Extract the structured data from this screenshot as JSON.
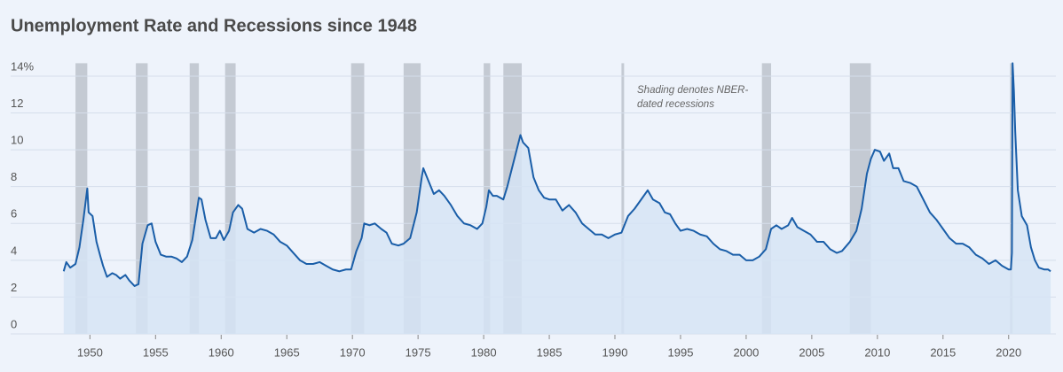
{
  "chart_data": {
    "type": "area_line",
    "title": "Unemployment Rate and Recessions since 1948",
    "annotation": [
      "Shading denotes NBER-",
      "dated recessions"
    ],
    "color": "#1a5ea8",
    "fill_color": "#d6e4f5",
    "recession_color": "#b9bfc9",
    "grid": true,
    "xlim": [
      1944.5,
      2023.6
    ],
    "xticks": [
      1950,
      1955,
      1960,
      1965,
      1970,
      1975,
      1980,
      1985,
      1990,
      1995,
      2000,
      2005,
      2010,
      2015,
      2020
    ],
    "ylim": [
      0,
      14.7
    ],
    "yticks": [
      0,
      2,
      4,
      6,
      8,
      10,
      12,
      {
        "value": 14,
        "label": "14%"
      }
    ],
    "recessions": [
      {
        "start": 1948.9,
        "end": 1949.8
      },
      {
        "start": 1953.5,
        "end": 1954.4
      },
      {
        "start": 1957.6,
        "end": 1958.3
      },
      {
        "start": 1960.3,
        "end": 1961.1
      },
      {
        "start": 1969.9,
        "end": 1970.9
      },
      {
        "start": 1973.9,
        "end": 1975.2
      },
      {
        "start": 1980.0,
        "end": 1980.5
      },
      {
        "start": 1981.5,
        "end": 1982.9
      },
      {
        "start": 1990.5,
        "end": 1990.7
      },
      {
        "start": 2001.2,
        "end": 2001.9
      },
      {
        "start": 2007.9,
        "end": 2009.5
      },
      {
        "start": 2020.1,
        "end": 2020.3
      }
    ],
    "x": [
      1948.0,
      1948.2,
      1948.5,
      1948.9,
      1949.2,
      1949.5,
      1949.8,
      1949.9,
      1950.2,
      1950.5,
      1950.8,
      1951.0,
      1951.3,
      1951.7,
      1952.0,
      1952.3,
      1952.7,
      1953.0,
      1953.4,
      1953.7,
      1954.0,
      1954.4,
      1954.7,
      1955.0,
      1955.4,
      1955.8,
      1956.2,
      1956.6,
      1957.0,
      1957.4,
      1957.8,
      1958.3,
      1958.5,
      1958.8,
      1959.2,
      1959.6,
      1959.9,
      1960.2,
      1960.6,
      1960.9,
      1961.3,
      1961.6,
      1962.0,
      1962.5,
      1963.0,
      1963.5,
      1964.0,
      1964.5,
      1965.0,
      1965.5,
      1966.0,
      1966.5,
      1967.0,
      1967.5,
      1968.0,
      1968.5,
      1969.0,
      1969.5,
      1969.9,
      1970.3,
      1970.7,
      1970.9,
      1971.3,
      1971.7,
      1972.2,
      1972.6,
      1973.0,
      1973.5,
      1973.9,
      1974.4,
      1974.9,
      1975.3,
      1975.4,
      1975.8,
      1976.2,
      1976.6,
      1977.0,
      1977.5,
      1978.0,
      1978.5,
      1979.0,
      1979.5,
      1979.9,
      1980.2,
      1980.4,
      1980.7,
      1981.0,
      1981.5,
      1981.8,
      1982.3,
      1982.8,
      1983.0,
      1983.4,
      1983.8,
      1984.2,
      1984.6,
      1985.0,
      1985.5,
      1986.0,
      1986.5,
      1987.0,
      1987.5,
      1988.0,
      1988.5,
      1989.0,
      1989.5,
      1990.0,
      1990.5,
      1991.0,
      1991.5,
      1992.0,
      1992.5,
      1992.9,
      1993.4,
      1993.8,
      1994.2,
      1994.6,
      1995.0,
      1995.5,
      1996.0,
      1996.5,
      1997.0,
      1997.5,
      1998.0,
      1998.5,
      1999.0,
      1999.5,
      2000.0,
      2000.5,
      2001.0,
      2001.5,
      2001.9,
      2002.3,
      2002.7,
      2003.2,
      2003.5,
      2003.9,
      2004.4,
      2004.9,
      2005.4,
      2005.9,
      2006.4,
      2006.9,
      2007.3,
      2007.9,
      2008.4,
      2008.8,
      2009.2,
      2009.5,
      2009.8,
      2010.2,
      2010.5,
      2010.9,
      2011.2,
      2011.6,
      2012.0,
      2012.5,
      2013.0,
      2013.5,
      2014.0,
      2014.5,
      2015.0,
      2015.5,
      2016.0,
      2016.5,
      2017.0,
      2017.5,
      2018.0,
      2018.5,
      2019.0,
      2019.5,
      2020.0,
      2020.17,
      2020.25,
      2020.3,
      2020.4,
      2020.5,
      2020.7,
      2021.0,
      2021.4,
      2021.7,
      2022.0,
      2022.3,
      2022.7,
      2023.0,
      2023.2
    ],
    "values": [
      3.4,
      3.9,
      3.6,
      3.8,
      4.7,
      6.2,
      7.9,
      6.6,
      6.4,
      5.0,
      4.2,
      3.7,
      3.1,
      3.3,
      3.2,
      3.0,
      3.2,
      2.9,
      2.6,
      2.7,
      4.9,
      5.9,
      6.0,
      5.0,
      4.3,
      4.2,
      4.2,
      4.1,
      3.9,
      4.2,
      5.1,
      7.4,
      7.3,
      6.2,
      5.2,
      5.2,
      5.6,
      5.1,
      5.6,
      6.6,
      7.0,
      6.8,
      5.7,
      5.5,
      5.7,
      5.6,
      5.4,
      5.0,
      4.8,
      4.4,
      4.0,
      3.8,
      3.8,
      3.9,
      3.7,
      3.5,
      3.4,
      3.5,
      3.5,
      4.5,
      5.2,
      6.0,
      5.9,
      6.0,
      5.7,
      5.5,
      4.9,
      4.8,
      4.9,
      5.2,
      6.6,
      8.6,
      9.0,
      8.3,
      7.6,
      7.8,
      7.5,
      7.0,
      6.4,
      6.0,
      5.9,
      5.7,
      6.0,
      6.9,
      7.8,
      7.5,
      7.5,
      7.3,
      8.0,
      9.4,
      10.8,
      10.4,
      10.1,
      8.5,
      7.8,
      7.4,
      7.3,
      7.3,
      6.7,
      7.0,
      6.6,
      6.0,
      5.7,
      5.4,
      5.4,
      5.2,
      5.4,
      5.5,
      6.4,
      6.8,
      7.3,
      7.8,
      7.3,
      7.1,
      6.6,
      6.5,
      6.0,
      5.6,
      5.7,
      5.6,
      5.4,
      5.3,
      4.9,
      4.6,
      4.5,
      4.3,
      4.3,
      4.0,
      4.0,
      4.2,
      4.6,
      5.7,
      5.9,
      5.7,
      5.9,
      6.3,
      5.8,
      5.6,
      5.4,
      5.0,
      5.0,
      4.6,
      4.4,
      4.5,
      5.0,
      5.6,
      6.8,
      8.7,
      9.5,
      10.0,
      9.9,
      9.4,
      9.8,
      9.0,
      9.0,
      8.3,
      8.2,
      8.0,
      7.3,
      6.6,
      6.2,
      5.7,
      5.2,
      4.9,
      4.9,
      4.7,
      4.3,
      4.1,
      3.8,
      4.0,
      3.7,
      3.5,
      3.5,
      4.4,
      14.7,
      13.2,
      11.0,
      7.8,
      6.4,
      5.9,
      4.7,
      4.0,
      3.6,
      3.5,
      3.5,
      3.4
    ]
  }
}
